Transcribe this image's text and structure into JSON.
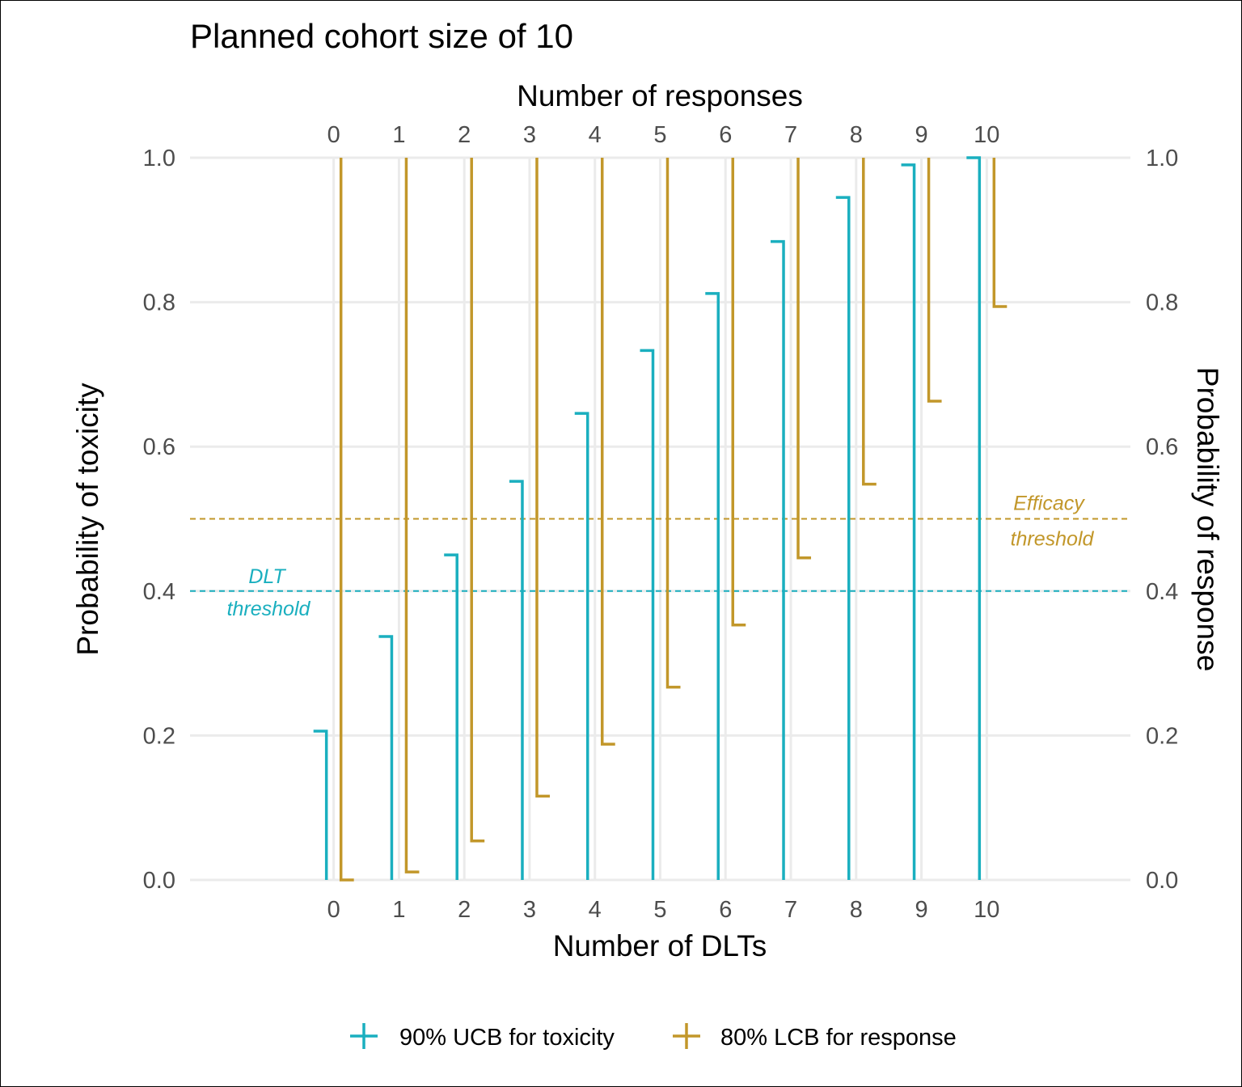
{
  "chart_data": {
    "type": "line",
    "title": "Planned cohort size of  10",
    "xlabel_bottom": "Number of DLTs",
    "xlabel_top": "Number of responses",
    "ylabel_left": "Probability of toxicity",
    "ylabel_right": "Probability of response",
    "x": [
      0,
      1,
      2,
      3,
      4,
      5,
      6,
      7,
      8,
      9,
      10
    ],
    "x_tick_labels": [
      "0",
      "1",
      "2",
      "3",
      "4",
      "5",
      "6",
      "7",
      "8",
      "9",
      "10"
    ],
    "xlim": [
      -2.2,
      12.2
    ],
    "ylim": [
      0,
      1
    ],
    "y_ticks": [
      0,
      0.2,
      0.4,
      0.6,
      0.8,
      1
    ],
    "y_tick_labels": [
      "0.0",
      "0.2",
      "0.4",
      "0.6",
      "0.8",
      "1.0"
    ],
    "grid": true,
    "legend_position": "bottom",
    "series": [
      {
        "name": "90% UCB for toxicity",
        "color": "#1aafbf",
        "bound": "upper",
        "values": [
          0.206,
          0.337,
          0.45,
          0.552,
          0.646,
          0.733,
          0.812,
          0.884,
          0.945,
          0.99,
          1.0
        ]
      },
      {
        "name": "80% LCB for response",
        "color": "#c2972a",
        "bound": "lower",
        "values": [
          0.0,
          0.011,
          0.054,
          0.116,
          0.188,
          0.267,
          0.353,
          0.446,
          0.548,
          0.663,
          0.794
        ]
      }
    ],
    "thresholds": [
      {
        "label_line1": "DLT",
        "label_line2": "threshold",
        "value": 0.4,
        "color": "#1aafbf"
      },
      {
        "label_line1": "Efficacy",
        "label_line2": "threshold",
        "value": 0.5,
        "color": "#c2972a"
      }
    ]
  }
}
